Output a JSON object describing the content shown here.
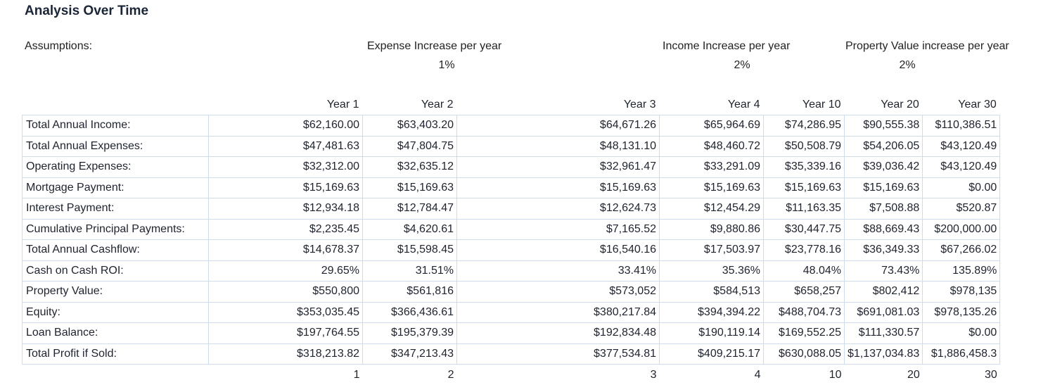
{
  "title": "Analysis Over Time",
  "assumptions": {
    "label": "Assumptions:",
    "items": [
      {
        "label": "Expense Increase per year",
        "value": "1%"
      },
      {
        "label": "Income Increase per year",
        "value": "2%"
      },
      {
        "label": "Property Value increase per year",
        "value": "2%"
      }
    ]
  },
  "table": {
    "columns": [
      "Year 1",
      "Year 2",
      "Year 3",
      "Year 4",
      "Year 10",
      "Year 20",
      "Year 30"
    ],
    "rows": [
      {
        "label": "Total Annual Income:",
        "values": [
          "$62,160.00",
          "$63,403.20",
          "$64,671.26",
          "$65,964.69",
          "$74,286.95",
          "$90,555.38",
          "$110,386.51"
        ]
      },
      {
        "label": "Total Annual Expenses:",
        "values": [
          "$47,481.63",
          "$47,804.75",
          "$48,131.10",
          "$48,460.72",
          "$50,508.79",
          "$54,206.05",
          "$43,120.49"
        ]
      },
      {
        "label": "Operating Expenses:",
        "values": [
          "$32,312.00",
          "$32,635.12",
          "$32,961.47",
          "$33,291.09",
          "$35,339.16",
          "$39,036.42",
          "$43,120.49"
        ]
      },
      {
        "label": "Mortgage Payment:",
        "values": [
          "$15,169.63",
          "$15,169.63",
          "$15,169.63",
          "$15,169.63",
          "$15,169.63",
          "$15,169.63",
          "$0.00"
        ]
      },
      {
        "label": "Interest Payment:",
        "values": [
          "$12,934.18",
          "$12,784.47",
          "$12,624.73",
          "$12,454.29",
          "$11,163.35",
          "$7,508.88",
          "$520.87"
        ]
      },
      {
        "label": "Cumulative Principal Payments:",
        "values": [
          "$2,235.45",
          "$4,620.61",
          "$7,165.52",
          "$9,880.86",
          "$30,447.75",
          "$88,669.43",
          "$200,000.00"
        ]
      },
      {
        "label": "Total Annual Cashflow:",
        "values": [
          "$14,678.37",
          "$15,598.45",
          "$16,540.16",
          "$17,503.97",
          "$23,778.16",
          "$36,349.33",
          "$67,266.02"
        ]
      },
      {
        "label": "Cash on Cash ROI:",
        "values": [
          "29.65%",
          "31.51%",
          "33.41%",
          "35.36%",
          "48.04%",
          "73.43%",
          "135.89%"
        ]
      },
      {
        "label": "Property Value:",
        "values": [
          "$550,800",
          "$561,816",
          "$573,052",
          "$584,513",
          "$658,257",
          "$802,412",
          "$978,135"
        ]
      },
      {
        "label": "Equity:",
        "values": [
          "$353,035.45",
          "$366,436.61",
          "$380,217.84",
          "$394,394.22",
          "$488,704.73",
          "$691,081.03",
          "$978,135.26"
        ]
      },
      {
        "label": "Loan Balance:",
        "values": [
          "$197,764.55",
          "$195,379.39",
          "$192,834.48",
          "$190,119.14",
          "$169,552.25",
          "$111,330.57",
          "$0.00"
        ]
      },
      {
        "label": "Total Profit if Sold:",
        "values": [
          "$318,213.82",
          "$347,213.43",
          "$377,534.81",
          "$409,215.17",
          "$630,088.05",
          "$1,137,034.83",
          "$1,886,458.3"
        ]
      }
    ],
    "footer": [
      "1",
      "2",
      "3",
      "4",
      "10",
      "20",
      "30"
    ]
  }
}
